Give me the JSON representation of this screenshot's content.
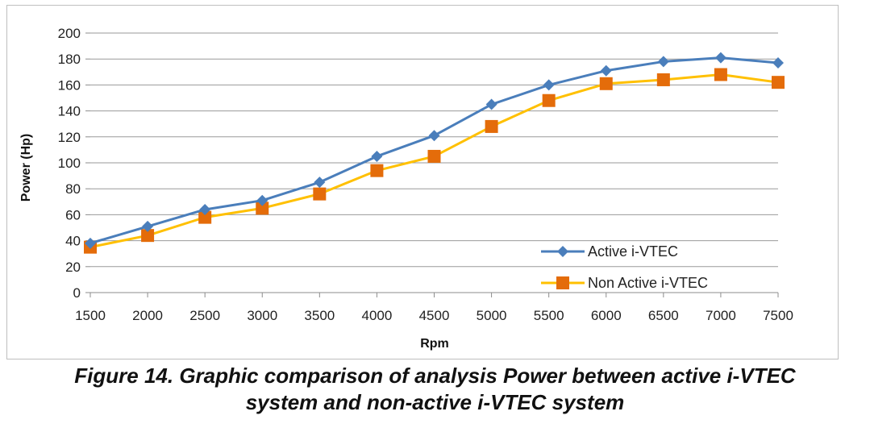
{
  "chart_data": {
    "type": "line",
    "title": "",
    "xlabel": "Rpm",
    "ylabel": "Power (Hp)",
    "categories": [
      "1500",
      "2000",
      "2500",
      "3000",
      "3500",
      "4000",
      "4500",
      "5000",
      "5500",
      "6000",
      "6500",
      "7000",
      "7500"
    ],
    "ylim": [
      0,
      200
    ],
    "yticks": [
      0,
      20,
      40,
      60,
      80,
      100,
      120,
      140,
      160,
      180,
      200
    ],
    "grid": true,
    "legend_position": "bottom-right",
    "series": [
      {
        "name": "Active i-VTEC",
        "color": "#4a7ebb",
        "marker": "diamond",
        "values": [
          38,
          51,
          64,
          71,
          85,
          105,
          121,
          145,
          160,
          171,
          178,
          181,
          177
        ]
      },
      {
        "name": "Non Active i-VTEC",
        "color": "#ffc000",
        "marker_color": "#e46c0a",
        "marker": "square",
        "values": [
          35,
          44,
          58,
          65,
          76,
          94,
          105,
          128,
          148,
          161,
          164,
          168,
          162
        ]
      }
    ]
  },
  "caption": {
    "line1": "Figure 14. Graphic comparison of analysis Power between active i-VTEC",
    "line2": "system and non-active i-VTEC system"
  }
}
